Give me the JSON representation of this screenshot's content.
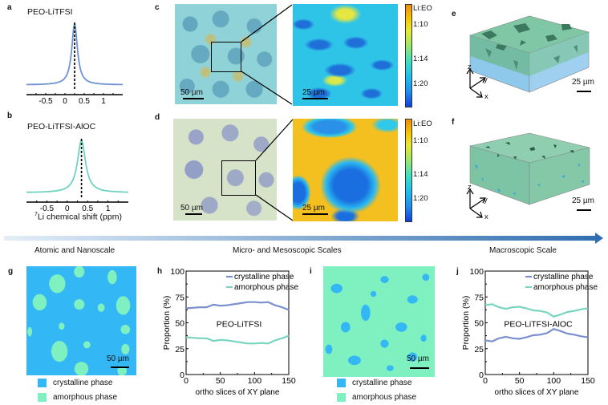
{
  "panels": {
    "a": {
      "label": "a",
      "title": "PEO-LiTFSI"
    },
    "b": {
      "label": "b",
      "title": "PEO-LiTFSI-AlOC",
      "xlabel_sup": "7",
      "xlabel": "Li chemical shift (ppm)"
    },
    "c": {
      "label": "c",
      "scale_left": "50 µm",
      "scale_right": "25 µm",
      "colorbar_title": "Li:EO",
      "colorbar_ticks": [
        "1:10",
        "1:14",
        "1:20"
      ]
    },
    "d": {
      "label": "d",
      "scale_left": "50 µm",
      "scale_right": "25 µm",
      "colorbar_title": "Li:EO",
      "colorbar_ticks": [
        "1:10",
        "1:14",
        "1:20"
      ]
    },
    "e": {
      "label": "e",
      "scale": "25 µm",
      "axes": {
        "z": "z",
        "y": "y",
        "x": "x"
      }
    },
    "f": {
      "label": "f",
      "scale": "25 µm",
      "axes": {
        "z": "z",
        "y": "y",
        "x": "x"
      }
    },
    "g": {
      "label": "g",
      "scale": "50 µm"
    },
    "h": {
      "label": "h"
    },
    "i": {
      "label": "i",
      "scale": "50 µm"
    },
    "j": {
      "label": "j"
    }
  },
  "scale_bar": {
    "labels": [
      "Atomic and Nanoscale",
      "Micro- and Mesoscopic Scales",
      "Macroscopic Scale"
    ]
  },
  "legend": {
    "crystalline": "crystalline phase",
    "amorphous": "amorphous phase"
  },
  "colors": {
    "crystalline_map": "#33b8f5",
    "amorphous_map": "#7ff0c0",
    "crystalline_line": "#7a8fcf",
    "amorphous_line": "#79d4c0",
    "spectrum_a": "#6f93d3",
    "spectrum_b": "#6fd3c0",
    "arrow_start": "#e4eef8",
    "arrow_end": "#2e6db0"
  },
  "chart_data": [
    {
      "id": "a",
      "type": "line",
      "title": "PEO-LiTFSI",
      "xlabel": "",
      "xticks": [
        "-0.5",
        "0",
        "0.5",
        "1"
      ],
      "xlim": [
        -1.0,
        1.5
      ],
      "peak_center": 0.25,
      "dashed_line_x": 0.25,
      "series": [
        {
          "name": "PEO-LiTFSI",
          "x": [
            -1.0,
            -0.5,
            -0.25,
            0,
            0.1,
            0.2,
            0.25,
            0.3,
            0.4,
            0.5,
            0.75,
            1.0,
            1.5
          ],
          "y": [
            0.05,
            0.08,
            0.13,
            0.3,
            0.55,
            0.92,
            1.0,
            0.92,
            0.55,
            0.3,
            0.13,
            0.08,
            0.05
          ]
        }
      ]
    },
    {
      "id": "b",
      "type": "line",
      "title": "PEO-LiTFSI-AlOC",
      "xlabel": "7Li chemical shift (ppm)",
      "xticks": [
        "-0.5",
        "0",
        "0.5",
        "1"
      ],
      "xlim": [
        -1.0,
        1.5
      ],
      "peak_center": 0.35,
      "dashed_line_x": 0.35,
      "series": [
        {
          "name": "PEO-LiTFSI-AlOC",
          "x": [
            -1.0,
            -0.5,
            -0.25,
            0,
            0.1,
            0.2,
            0.3,
            0.35,
            0.4,
            0.5,
            0.6,
            0.75,
            1.0,
            1.5
          ],
          "y": [
            0.06,
            0.1,
            0.15,
            0.25,
            0.35,
            0.55,
            0.88,
            1.0,
            0.9,
            0.6,
            0.38,
            0.22,
            0.12,
            0.06
          ]
        }
      ]
    },
    {
      "id": "h",
      "type": "line",
      "title": "",
      "annotation": "PEO-LiTFSI",
      "xlabel": "ortho slices of XY plane",
      "ylabel": "Proportion (%)",
      "xlim": [
        0,
        150
      ],
      "ylim": [
        0,
        100
      ],
      "xticks": [
        0,
        50,
        100,
        150
      ],
      "yticks": [
        0,
        25,
        50,
        75,
        100
      ],
      "legend": "top-right",
      "x": [
        0,
        10,
        20,
        30,
        40,
        50,
        60,
        70,
        80,
        90,
        100,
        110,
        120,
        130,
        140,
        150
      ],
      "series": [
        {
          "name": "crystalline phase",
          "values": [
            64,
            64.5,
            65,
            65,
            67.5,
            66.5,
            67,
            68,
            69,
            70,
            70,
            69.5,
            70,
            67,
            65,
            62.5
          ]
        },
        {
          "name": "amorphous phase",
          "values": [
            36,
            35.5,
            35,
            35,
            32.5,
            33.5,
            33,
            32,
            31,
            30,
            30,
            30.5,
            30,
            33,
            35,
            37.5
          ]
        }
      ]
    },
    {
      "id": "j",
      "type": "line",
      "title": "",
      "annotation": "PEO-LiTFSI-AlOC",
      "xlabel": "ortho slices of XY plane",
      "ylabel": "Proportion (%)",
      "xlim": [
        0,
        150
      ],
      "ylim": [
        0,
        100
      ],
      "xticks": [
        0,
        50,
        100,
        150
      ],
      "yticks": [
        0,
        25,
        50,
        75,
        100
      ],
      "legend": "top-right",
      "x": [
        0,
        10,
        20,
        30,
        40,
        50,
        60,
        70,
        80,
        90,
        100,
        110,
        120,
        130,
        140,
        150
      ],
      "series": [
        {
          "name": "crystalline phase",
          "values": [
            33,
            32,
            35,
            36.5,
            35,
            34.5,
            36,
            38,
            38.5,
            40,
            44,
            42,
            39.5,
            38.5,
            37,
            36
          ]
        },
        {
          "name": "amorphous phase",
          "values": [
            67,
            68,
            65,
            63.5,
            65,
            65.5,
            64,
            62,
            61.5,
            60,
            56,
            58,
            60.5,
            61.5,
            63,
            64
          ]
        }
      ]
    }
  ]
}
